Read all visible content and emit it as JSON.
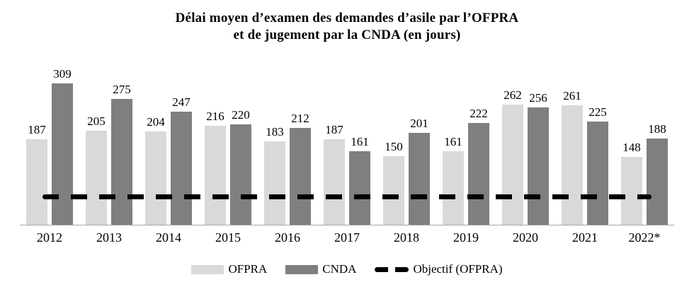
{
  "title": {
    "line1": "Délai moyen d’examen des demandes d’asile par l’OFPRA",
    "line2": "et de jugement par la CNDA (en jours)"
  },
  "legend": {
    "ofpra_label": "OFPRA",
    "cnda_label": "CNDA",
    "objectif_label": "Objectif (OFPRA)"
  },
  "colors": {
    "ofpra_bar": "#d9d9d9",
    "cnda_bar": "#7f7f7f",
    "objectif_line": "#000000",
    "axis_line": "#a6a6a6",
    "text": "#000000",
    "background": "#ffffff"
  },
  "chart_data": {
    "type": "bar",
    "title": "Délai moyen d’examen des demandes d’asile par l’OFPRA et de jugement par la CNDA (en jours)",
    "unit": "jours",
    "categories": [
      "2012",
      "2013",
      "2014",
      "2015",
      "2016",
      "2017",
      "2018",
      "2019",
      "2020",
      "2021",
      "2022*"
    ],
    "series": [
      {
        "name": "OFPRA",
        "values": [
          187,
          205,
          204,
          216,
          183,
          187,
          150,
          161,
          262,
          261,
          148
        ]
      },
      {
        "name": "CNDA",
        "values": [
          309,
          275,
          247,
          220,
          212,
          161,
          201,
          222,
          256,
          225,
          188
        ]
      }
    ],
    "reference_line": {
      "label": "Objectif (OFPRA)",
      "value": 60,
      "style": "dashed",
      "estimated_from_pixels": true
    },
    "ylim": [
      0,
      360
    ],
    "grid": false,
    "data_labels": true,
    "legend_position": "bottom"
  }
}
